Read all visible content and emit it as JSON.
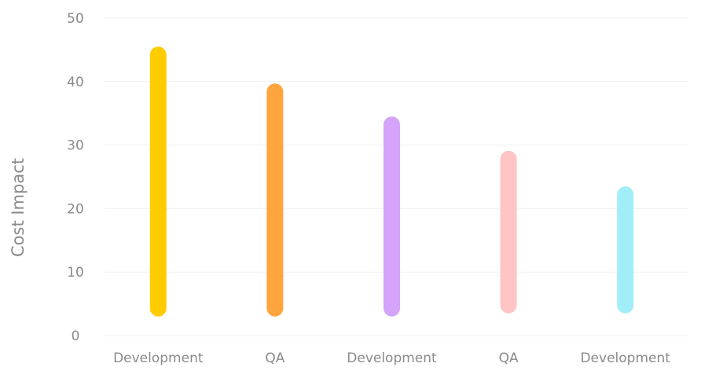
{
  "chart_data": {
    "type": "bar",
    "ylabel": "Cost Impact",
    "xlabel": "",
    "ylim": [
      0,
      50
    ],
    "yticks": [
      0,
      10,
      20,
      30,
      40,
      50
    ],
    "grid": true,
    "bars": [
      {
        "category": "Development",
        "start": 3,
        "end": 45.5,
        "color": "#FFCC00"
      },
      {
        "category": "QA",
        "start": 3,
        "end": 39.7,
        "color": "#FFA53E"
      },
      {
        "category": "Development",
        "start": 3,
        "end": 34.5,
        "color": "#D3A4FA"
      },
      {
        "category": "QA",
        "start": 3.5,
        "end": 29.1,
        "color": "#FFC4C4"
      },
      {
        "category": "Development",
        "start": 3.5,
        "end": 23.5,
        "color": "#A1EEF9"
      }
    ]
  }
}
